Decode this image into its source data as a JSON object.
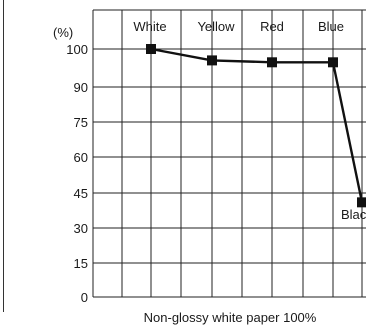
{
  "chart_data": {
    "type": "line",
    "title": "",
    "ylabel": "(%)",
    "xlabel": "Non-glossy white paper 100%",
    "ylim": [
      0,
      100
    ],
    "yticks": [
      0,
      15,
      30,
      45,
      60,
      75,
      90,
      100
    ],
    "categories": [
      "White",
      "Yellow",
      "Red",
      "Blue",
      "Blac"
    ],
    "series": [
      {
        "values": [
          100,
          97,
          96.5,
          96.5,
          41
        ]
      }
    ],
    "grid": true,
    "legend": "none"
  }
}
